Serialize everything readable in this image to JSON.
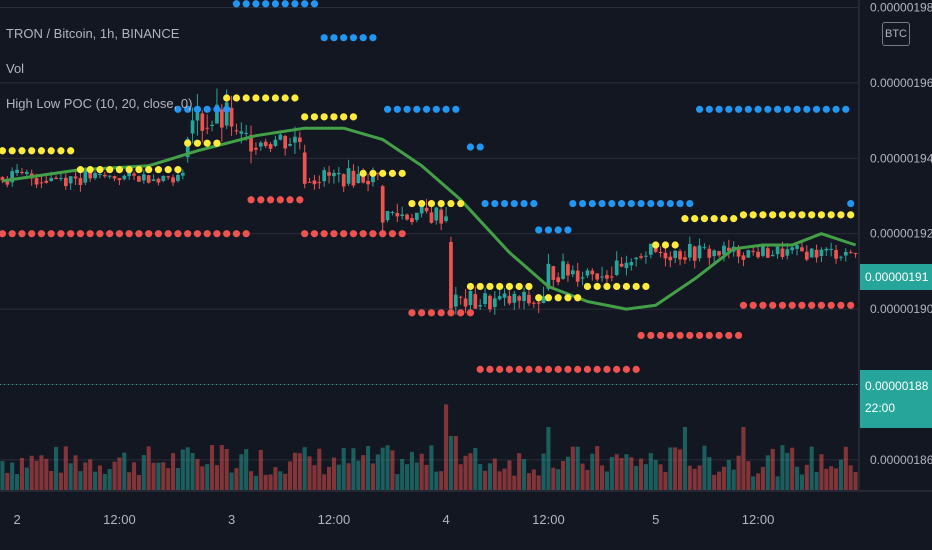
{
  "legend": {
    "symbol": "TRON / Bitcoin, 1h, BINANCE",
    "volume": "Vol",
    "indicator": "High Low POC (10, 20, close, 0)"
  },
  "currency_button": "BTC",
  "badges": {
    "current_price": "0.00000191",
    "last_line": "0.00000188",
    "countdown": "22:00"
  },
  "colors": {
    "background": "#131722",
    "grid": "#2a2e39",
    "up": "#26a69a",
    "down": "#ef5350",
    "high_dots": "#2196f3",
    "low_dots": "#ef5350",
    "poc_dots": "#ffeb3b",
    "ma": "#43a047"
  },
  "chart_data": {
    "type": "candlestick",
    "title": "TRON / Bitcoin, 1h, BINANCE",
    "ylim": [
      1.852e-06,
      1.982e-06
    ],
    "y_ticks": [
      "0.00000198",
      "0.00000196",
      "0.00000194",
      "0.00000192",
      "0.00000190",
      "0.00000188",
      "0.00000186"
    ],
    "y_tick_values": [
      1.98e-06,
      1.96e-06,
      1.94e-06,
      1.92e-06,
      1.9e-06,
      1.88e-06,
      1.86e-06
    ],
    "x_ticks": [
      "2",
      "12:00",
      "3",
      "12:00",
      "4",
      "12:00",
      "5",
      "12:00"
    ],
    "x_tick_index": [
      3,
      24,
      47,
      68,
      91,
      112,
      134,
      155
    ],
    "n_bars": 176,
    "price_line": 1.88e-06,
    "current_price": 1.91e-06,
    "volume_max_fraction_of_pane": 1.0,
    "segments": [
      {
        "from": 0,
        "to": 18,
        "price": 1.935e-06,
        "amp": 2.5e-09
      },
      {
        "from": 18,
        "to": 38,
        "price": 1.935e-06,
        "amp": 1.5e-09
      },
      {
        "from": 38,
        "to": 48,
        "price": 1.95e-06,
        "amp": 5e-09
      },
      {
        "from": 48,
        "to": 62,
        "price": 1.945e-06,
        "amp": 3.5e-09
      },
      {
        "from": 62,
        "to": 78,
        "price": 1.935e-06,
        "amp": 2.5e-09
      },
      {
        "from": 78,
        "to": 92,
        "price": 1.925e-06,
        "amp": 3e-09
      },
      {
        "from": 92,
        "to": 112,
        "price": 1.902e-06,
        "amp": 3e-09
      },
      {
        "from": 112,
        "to": 130,
        "price": 1.91e-06,
        "amp": 3e-09
      },
      {
        "from": 130,
        "to": 150,
        "price": 1.915e-06,
        "amp": 2.5e-09
      },
      {
        "from": 150,
        "to": 176,
        "price": 1.915e-06,
        "amp": 2e-09
      }
    ],
    "ma": [
      {
        "x": 0,
        "y": 1.934e-06
      },
      {
        "x": 16,
        "y": 1.937e-06
      },
      {
        "x": 30,
        "y": 1.938e-06
      },
      {
        "x": 40,
        "y": 1.942e-06
      },
      {
        "x": 52,
        "y": 1.946e-06
      },
      {
        "x": 62,
        "y": 1.948e-06
      },
      {
        "x": 70,
        "y": 1.948e-06
      },
      {
        "x": 78,
        "y": 1.945e-06
      },
      {
        "x": 86,
        "y": 1.938e-06
      },
      {
        "x": 94,
        "y": 1.929e-06
      },
      {
        "x": 104,
        "y": 1.915e-06
      },
      {
        "x": 112,
        "y": 1.906e-06
      },
      {
        "x": 120,
        "y": 1.902e-06
      },
      {
        "x": 128,
        "y": 1.9e-06
      },
      {
        "x": 134,
        "y": 1.901e-06
      },
      {
        "x": 142,
        "y": 1.908e-06
      },
      {
        "x": 150,
        "y": 1.916e-06
      },
      {
        "x": 156,
        "y": 1.917e-06
      },
      {
        "x": 162,
        "y": 1.917e-06
      },
      {
        "x": 168,
        "y": 1.92e-06
      },
      {
        "x": 176,
        "y": 1.917e-06
      }
    ],
    "high_dots": [
      {
        "from": 48,
        "to": 66,
        "y": 1.981e-06
      },
      {
        "from": 36,
        "to": 48,
        "y": 1.953e-06
      },
      {
        "from": 66,
        "to": 78,
        "y": 1.972e-06
      },
      {
        "from": 79,
        "to": 95,
        "y": 1.953e-06
      },
      {
        "from": 96,
        "to": 99,
        "y": 1.943e-06
      },
      {
        "from": 99,
        "to": 110,
        "y": 1.928e-06
      },
      {
        "from": 110,
        "to": 117,
        "y": 1.921e-06
      },
      {
        "from": 117,
        "to": 143,
        "y": 1.928e-06
      },
      {
        "from": 143,
        "to": 174,
        "y": 1.953e-06
      },
      {
        "from": 174,
        "to": 176,
        "y": 1.928e-06
      }
    ],
    "low_dots": [
      {
        "from": 0,
        "to": 51,
        "y": 1.92e-06
      },
      {
        "from": 51,
        "to": 62,
        "y": 1.929e-06
      },
      {
        "from": 62,
        "to": 84,
        "y": 1.92e-06
      },
      {
        "from": 84,
        "to": 98,
        "y": 1.899e-06
      },
      {
        "from": 98,
        "to": 131,
        "y": 1.884e-06
      },
      {
        "from": 131,
        "to": 152,
        "y": 1.893e-06
      },
      {
        "from": 152,
        "to": 176,
        "y": 1.901e-06
      }
    ],
    "poc_dots": [
      {
        "from": 0,
        "to": 16,
        "y": 1.942e-06
      },
      {
        "from": 16,
        "to": 38,
        "y": 1.937e-06
      },
      {
        "from": 38,
        "to": 46,
        "y": 1.944e-06
      },
      {
        "from": 46,
        "to": 62,
        "y": 1.956e-06
      },
      {
        "from": 62,
        "to": 74,
        "y": 1.951e-06
      },
      {
        "from": 74,
        "to": 84,
        "y": 1.936e-06
      },
      {
        "from": 84,
        "to": 96,
        "y": 1.928e-06
      },
      {
        "from": 96,
        "to": 110,
        "y": 1.906e-06
      },
      {
        "from": 110,
        "to": 120,
        "y": 1.903e-06
      },
      {
        "from": 120,
        "to": 134,
        "y": 1.906e-06
      },
      {
        "from": 134,
        "to": 140,
        "y": 1.917e-06
      },
      {
        "from": 140,
        "to": 152,
        "y": 1.924e-06
      },
      {
        "from": 152,
        "to": 176,
        "y": 1.925e-06
      }
    ]
  }
}
